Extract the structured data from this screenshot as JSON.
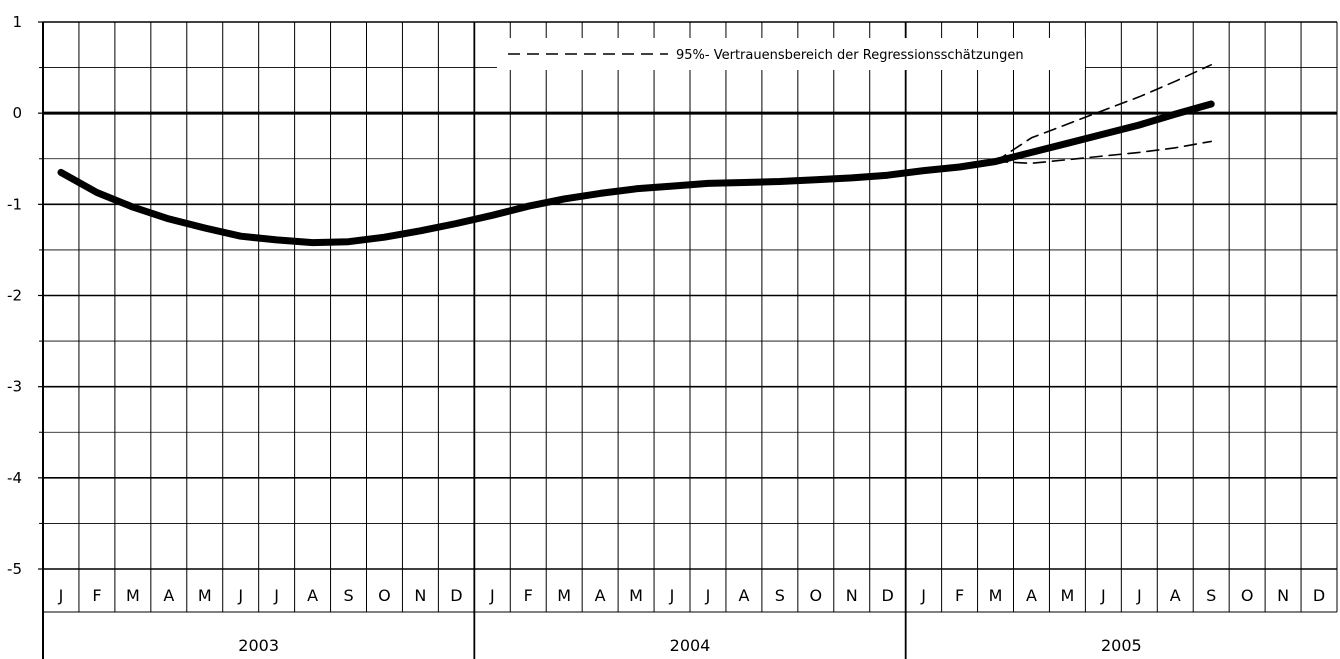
{
  "chart_data": {
    "type": "line",
    "ylim": [
      -5,
      1
    ],
    "yticks": [
      "1",
      "0",
      "-1",
      "-2",
      "-3",
      "-4",
      "-5"
    ],
    "months": [
      "J",
      "F",
      "M",
      "A",
      "M",
      "J",
      "J",
      "A",
      "S",
      "O",
      "N",
      "D",
      "J",
      "F",
      "M",
      "A",
      "M",
      "J",
      "J",
      "A",
      "S",
      "O",
      "N",
      "D",
      "J",
      "F",
      "M",
      "A",
      "M",
      "J",
      "J",
      "A",
      "S",
      "O",
      "N",
      "D"
    ],
    "years": [
      "2003",
      "2004",
      "2005"
    ],
    "grid": true,
    "legend": {
      "label": "95%- Vertrauensbereich der Regressionsschätzungen",
      "position": "top-right"
    },
    "series": [
      {
        "style": "solid-thick",
        "x": [
          "2003-01",
          "2003-02",
          "2003-03",
          "2003-04",
          "2003-05",
          "2003-06",
          "2003-07",
          "2003-08",
          "2003-09",
          "2003-10",
          "2003-11",
          "2003-12",
          "2004-01",
          "2004-02",
          "2004-03",
          "2004-04",
          "2004-05",
          "2004-06",
          "2004-07",
          "2004-08",
          "2004-09",
          "2004-10",
          "2004-11",
          "2004-12",
          "2005-01",
          "2005-02",
          "2005-03",
          "2005-04",
          "2005-05",
          "2005-06",
          "2005-07",
          "2005-08",
          "2005-09"
        ],
        "values": [
          -0.65,
          -0.87,
          -1.03,
          -1.16,
          -1.26,
          -1.35,
          -1.39,
          -1.42,
          -1.41,
          -1.36,
          -1.29,
          -1.21,
          -1.12,
          -1.02,
          -0.94,
          -0.88,
          -0.83,
          -0.8,
          -0.77,
          -0.76,
          -0.75,
          -0.73,
          -0.71,
          -0.68,
          -0.63,
          -0.59,
          -0.53,
          -0.43,
          -0.33,
          -0.23,
          -0.13,
          -0.01,
          0.1
        ]
      },
      {
        "style": "dashed",
        "x": [
          "2005-03",
          "2005-04",
          "2005-05",
          "2005-06",
          "2005-07",
          "2005-08",
          "2005-09"
        ],
        "values": [
          -0.53,
          -0.27,
          -0.12,
          0.03,
          0.18,
          0.35,
          0.53
        ]
      },
      {
        "style": "dashed",
        "x": [
          "2005-03",
          "2005-04",
          "2005-05",
          "2005-06",
          "2005-07",
          "2005-08",
          "2005-09"
        ],
        "values": [
          -0.53,
          -0.55,
          -0.51,
          -0.47,
          -0.43,
          -0.38,
          -0.31
        ]
      }
    ]
  }
}
